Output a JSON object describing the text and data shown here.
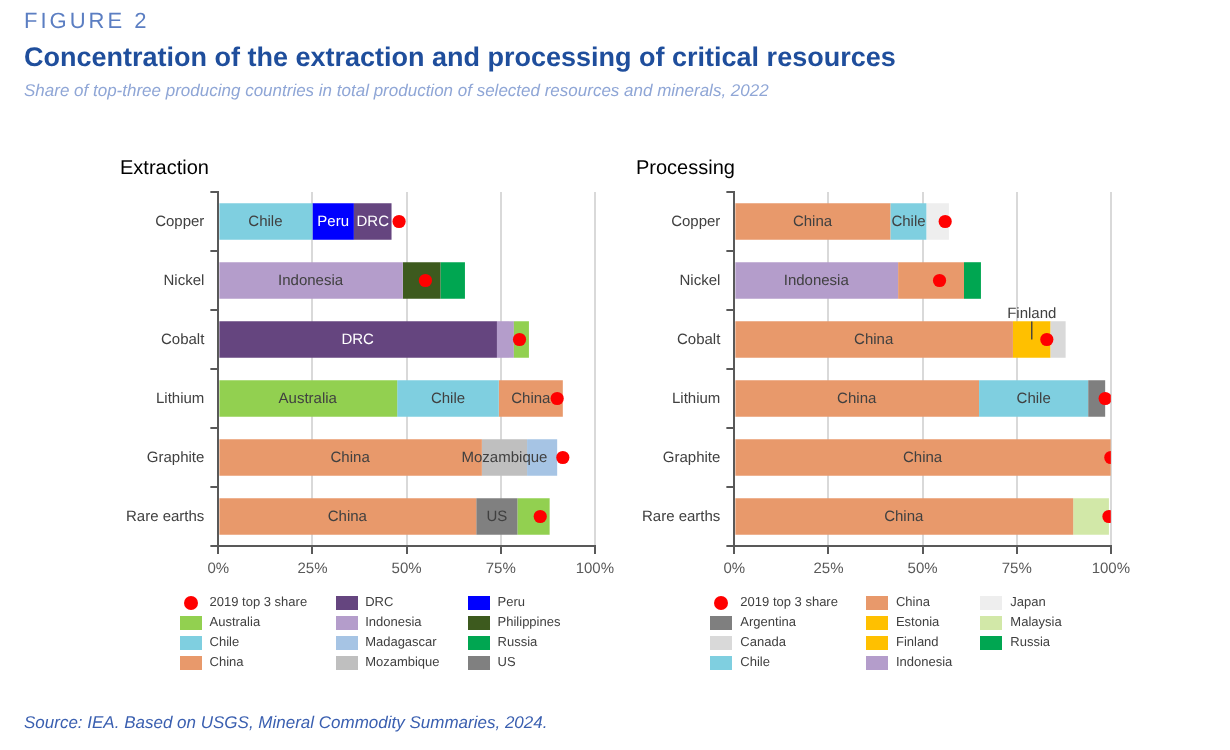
{
  "chart_data": [
    {
      "type": "other",
      "title": "Concentration of the extraction and processing of critical resources",
      "subtitle": "Share of top-three producing countries in total production of selected resources and minerals, 2022",
      "annotations": [
        "FIGURE 2",
        "Source: IEA. Based on USGS, Mineral Commodity Summaries, 2024."
      ]
    },
    {
      "type": "bar",
      "orientation": "horizontal",
      "title": "Extraction",
      "categories": [
        "Copper",
        "Nickel",
        "Cobalt",
        "Lithium",
        "Graphite",
        "Rare earths"
      ],
      "series": [
        {
          "name": "2019 top 3 share",
          "type": "scatter",
          "marker": "circle",
          "color": "#ff0000",
          "values": [
            48,
            55,
            80,
            90,
            91.5,
            85.5
          ]
        },
        {
          "name": "Australia",
          "color": "#92d050",
          "values": [
            null,
            null,
            4,
            47.5,
            null,
            8.5
          ],
          "base": [
            null,
            null,
            78.5,
            0,
            null,
            79.5
          ]
        },
        {
          "name": "Chile",
          "color": "#7fcfe0",
          "values": [
            25,
            null,
            null,
            27,
            null,
            null
          ],
          "base": [
            0,
            null,
            null,
            47.5,
            null,
            null
          ]
        },
        {
          "name": "China",
          "color": "#e8996b",
          "values": [
            null,
            null,
            null,
            17,
            70,
            68.5
          ],
          "base": [
            null,
            null,
            null,
            74.5,
            0,
            0
          ]
        },
        {
          "name": "DRC",
          "color": "#65457f",
          "values": [
            10,
            null,
            74,
            null,
            null,
            null
          ],
          "base": [
            36,
            null,
            0,
            null,
            null,
            null
          ]
        },
        {
          "name": "Indonesia",
          "color": "#b49dcb",
          "values": [
            null,
            49,
            4.5,
            null,
            null,
            null
          ],
          "base": [
            null,
            0,
            74,
            null,
            null,
            null
          ]
        },
        {
          "name": "Madagascar",
          "color": "#a6c4e4",
          "values": [
            null,
            null,
            null,
            null,
            8,
            null
          ],
          "base": [
            null,
            null,
            null,
            null,
            82,
            null
          ]
        },
        {
          "name": "Mozambique",
          "color": "#bfbfbf",
          "values": [
            null,
            null,
            null,
            null,
            12,
            null
          ],
          "base": [
            null,
            null,
            null,
            null,
            70,
            null
          ]
        },
        {
          "name": "Peru",
          "color": "#0000ff",
          "values": [
            11,
            null,
            null,
            null,
            null,
            null
          ],
          "base": [
            25,
            null,
            null,
            null,
            null,
            null
          ]
        },
        {
          "name": "Philippines",
          "color": "#3d5a1e",
          "values": [
            null,
            10,
            null,
            null,
            null,
            null
          ],
          "base": [
            null,
            49,
            null,
            null,
            null,
            null
          ]
        },
        {
          "name": "Russia",
          "color": "#00a651",
          "values": [
            null,
            6.5,
            null,
            null,
            null,
            null
          ],
          "base": [
            null,
            59,
            null,
            null,
            null,
            null
          ]
        },
        {
          "name": "US",
          "color": "#808080",
          "values": [
            null,
            null,
            null,
            null,
            null,
            11
          ],
          "base": [
            null,
            null,
            null,
            null,
            null,
            68.5
          ]
        }
      ],
      "xlim": [
        0,
        100
      ],
      "xticks": [
        {
          "value": 0,
          "label": "0%"
        },
        {
          "value": 25,
          "label": "25%"
        },
        {
          "value": 50,
          "label": "50%"
        },
        {
          "value": 75,
          "label": "75%"
        },
        {
          "value": 100,
          "label": "100%"
        }
      ],
      "grid": "x",
      "legend": "bottom",
      "annotations": [
        {
          "text": "Chile",
          "x": 12.5,
          "y": "Copper"
        },
        {
          "text": "Peru",
          "x": 30.5,
          "y": "Copper"
        },
        {
          "text": "DRC",
          "x": 41,
          "y": "Copper"
        },
        {
          "text": "Indonesia",
          "x": 24.5,
          "y": "Nickel"
        },
        {
          "text": "DRC",
          "x": 37,
          "y": "Cobalt"
        },
        {
          "text": "Australia",
          "x": 23.75,
          "y": "Lithium"
        },
        {
          "text": "Chile",
          "x": 61,
          "y": "Lithium"
        },
        {
          "text": "China",
          "x": 83,
          "y": "Lithium"
        },
        {
          "text": "China",
          "x": 35,
          "y": "Graphite"
        },
        {
          "text": "Mozambique",
          "x": 76,
          "y": "Graphite"
        },
        {
          "text": "China",
          "x": 34.25,
          "y": "Rare earths"
        },
        {
          "text": "US",
          "x": 74,
          "y": "Rare earths"
        }
      ]
    },
    {
      "type": "bar",
      "orientation": "horizontal",
      "title": "Processing",
      "categories": [
        "Copper",
        "Nickel",
        "Cobalt",
        "Lithium",
        "Graphite",
        "Rare earths"
      ],
      "series": [
        {
          "name": "2019 top 3 share",
          "type": "scatter",
          "marker": "circle",
          "color": "#ff0000",
          "values": [
            56,
            54.5,
            83,
            98.5,
            100,
            99.5
          ]
        },
        {
          "name": "Argentina",
          "color": "#7f7f7f",
          "values": [
            null,
            null,
            null,
            4.5,
            null,
            null
          ],
          "base": [
            null,
            null,
            null,
            94,
            null,
            null
          ]
        },
        {
          "name": "Canada",
          "color": "#d9d9d9",
          "values": [
            null,
            null,
            4,
            null,
            null,
            null
          ],
          "base": [
            null,
            null,
            84,
            null,
            null,
            null
          ]
        },
        {
          "name": "Chile",
          "color": "#7fcfe0",
          "values": [
            9.5,
            null,
            null,
            29,
            null,
            null
          ],
          "base": [
            41.5,
            null,
            null,
            65,
            null,
            null
          ]
        },
        {
          "name": "China",
          "color": "#e8996b",
          "values": [
            41.5,
            17.5,
            74,
            65,
            100,
            90
          ],
          "base": [
            0,
            43.5,
            0,
            0,
            0,
            0
          ]
        },
        {
          "name": "Estonia",
          "color": "#ffc000",
          "values": [
            null,
            null,
            null,
            null,
            null,
            null
          ],
          "base": [
            null,
            null,
            null,
            null,
            null,
            null
          ]
        },
        {
          "name": "Finland",
          "color": "#ffc000",
          "values": [
            null,
            null,
            10,
            null,
            null,
            null
          ],
          "base": [
            null,
            null,
            74,
            null,
            null,
            null
          ]
        },
        {
          "name": "Indonesia",
          "color": "#b49dcb",
          "values": [
            null,
            43.5,
            null,
            null,
            null,
            null
          ],
          "base": [
            null,
            0,
            null,
            null,
            null,
            null
          ]
        },
        {
          "name": "Japan",
          "color": "#eeeeee",
          "values": [
            6,
            null,
            null,
            null,
            null,
            null
          ],
          "base": [
            51,
            null,
            null,
            null,
            null,
            null
          ]
        },
        {
          "name": "Malaysia",
          "color": "#d2e8a8",
          "values": [
            null,
            null,
            null,
            null,
            null,
            9.5
          ],
          "base": [
            null,
            null,
            null,
            null,
            null,
            90
          ]
        },
        {
          "name": "Russia",
          "color": "#00a651",
          "values": [
            null,
            4.5,
            null,
            null,
            null,
            null
          ],
          "base": [
            null,
            61,
            null,
            null,
            null,
            null
          ]
        }
      ],
      "xlim": [
        0,
        100
      ],
      "xticks": [
        {
          "value": 0,
          "label": "0%"
        },
        {
          "value": 25,
          "label": "25%"
        },
        {
          "value": 50,
          "label": "50%"
        },
        {
          "value": 75,
          "label": "75%"
        },
        {
          "value": 100,
          "label": "100%"
        }
      ],
      "grid": "x",
      "legend": "bottom",
      "annotations": [
        {
          "text": "China",
          "x": 20.75,
          "y": "Copper"
        },
        {
          "text": "Chile",
          "x": 46.25,
          "y": "Copper"
        },
        {
          "text": "Indonesia",
          "x": 21.75,
          "y": "Nickel"
        },
        {
          "text": "China",
          "x": 37,
          "y": "Cobalt"
        },
        {
          "text": "Finland",
          "x": 79,
          "y": "Cobalt"
        },
        {
          "text": "China",
          "x": 32.5,
          "y": "Lithium"
        },
        {
          "text": "Chile",
          "x": 79.5,
          "y": "Lithium"
        },
        {
          "text": "China",
          "x": 50,
          "y": "Graphite"
        },
        {
          "text": "China",
          "x": 45,
          "y": "Rare earths"
        }
      ]
    }
  ]
}
